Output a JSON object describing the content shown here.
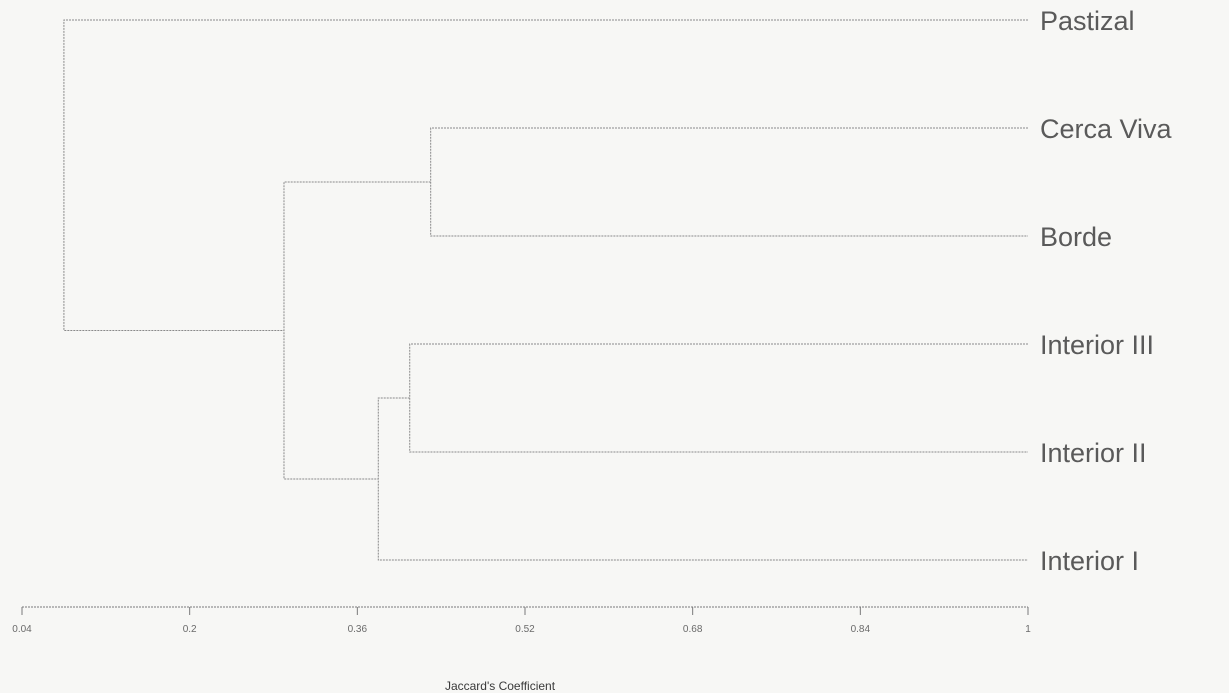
{
  "chart_data": {
    "type": "dendrogram",
    "xlabel": "Jaccard's Coefficient",
    "xlim": [
      0.04,
      1
    ],
    "x_ticks": [
      "0.04",
      "0.2",
      "0.36",
      "0.52",
      "0.68",
      "0.84",
      "1"
    ],
    "x_tick_values": [
      0.04,
      0.2,
      0.36,
      0.52,
      0.68,
      0.84,
      1
    ],
    "leaves": [
      "Pastizal",
      "Cerca Viva",
      "Borde",
      "Interior III",
      "Interior II",
      "Interior I"
    ],
    "merges": [
      {
        "a": "Cerca Viva",
        "b": "Borde",
        "height": 0.43
      },
      {
        "a": "Interior III",
        "b": "Interior II",
        "height": 0.41
      },
      {
        "a": "Interior III+Interior II",
        "b": "Interior I",
        "height": 0.38
      },
      {
        "a": "Cerca Viva+Borde",
        "b": "Interior III+Interior II+Interior I",
        "height": 0.29
      },
      {
        "a": "Pastizal",
        "b": "Cerca Viva+Borde+Interior III+Interior II+Interior I",
        "height": 0.08
      }
    ]
  }
}
